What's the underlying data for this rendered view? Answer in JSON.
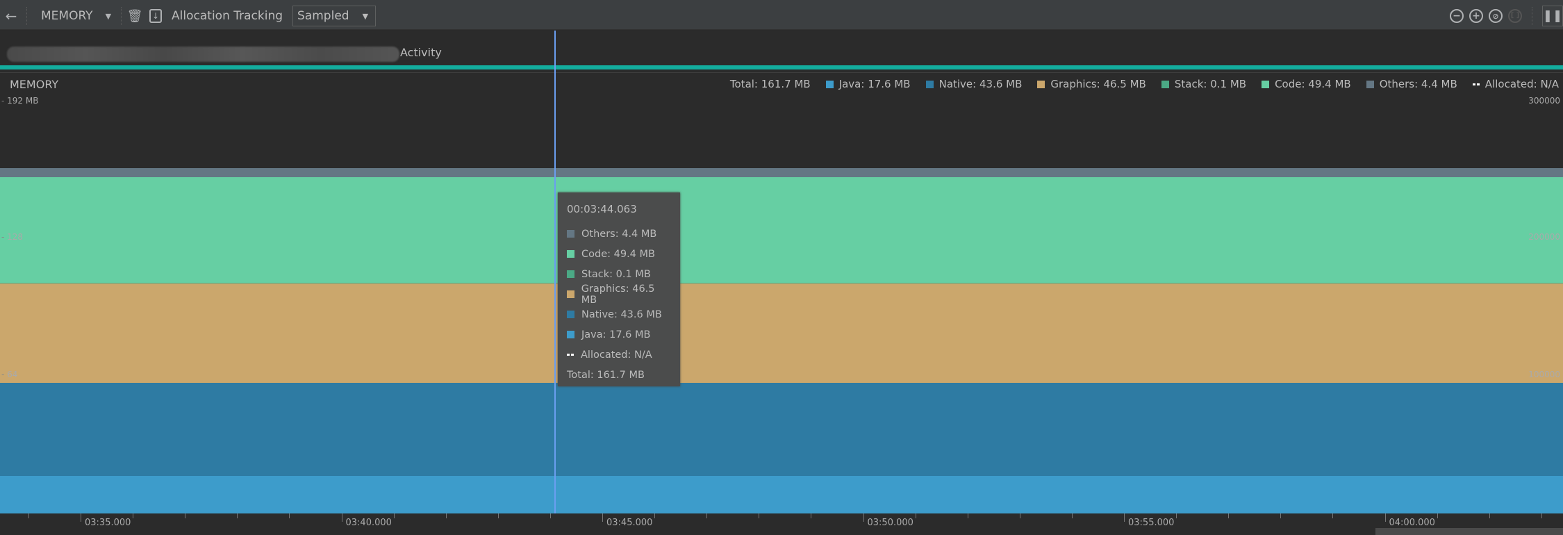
{
  "toolbar": {
    "back_icon": "arrow-left-icon",
    "profiler": "MEMORY",
    "allocation_label": "Allocation Tracking",
    "allocation_value": "Sampled"
  },
  "events": {
    "activity_label": "Activity"
  },
  "memory": {
    "title": "MEMORY",
    "legend": [
      {
        "label": "Total: 161.7 MB"
      },
      {
        "label": "Java: 17.6 MB",
        "color": "#3d9ccb"
      },
      {
        "label": "Native: 43.6 MB",
        "color": "#2e7ba3"
      },
      {
        "label": "Graphics: 46.5 MB",
        "color": "#cba76c"
      },
      {
        "label": "Stack: 0.1 MB",
        "color": "#4ba985"
      },
      {
        "label": "Code: 49.4 MB",
        "color": "#66cfa3"
      },
      {
        "label": "Others: 4.4 MB",
        "color": "#647784"
      },
      {
        "label": "Allocated: N/A",
        "dashed": true
      }
    ],
    "y_left_ticks": [
      "192 MB",
      "128",
      "64"
    ],
    "y_right_ticks": [
      "300000",
      "200000",
      "100000"
    ]
  },
  "tooltip": {
    "time": "00:03:44.063",
    "rows": [
      {
        "label": "Others: 4.4 MB",
        "color": "#647784"
      },
      {
        "label": "Code: 49.4 MB",
        "color": "#66cfa3"
      },
      {
        "label": "Stack: 0.1 MB",
        "color": "#4ba985"
      },
      {
        "label": "Graphics: 46.5 MB",
        "color": "#cba76c"
      },
      {
        "label": "Native: 43.6 MB",
        "color": "#2e7ba3"
      },
      {
        "label": "Java: 17.6 MB",
        "color": "#3d9ccb"
      },
      {
        "label": "Allocated: N/A",
        "dashed": true
      }
    ],
    "total": "Total: 161.7 MB"
  },
  "chart_data": {
    "type": "area",
    "stacked": true,
    "ylim": [
      0,
      192
    ],
    "series": [
      {
        "name": "Java",
        "value": 17.6,
        "color": "#3d9ccb"
      },
      {
        "name": "Native",
        "value": 43.6,
        "color": "#2e7ba3"
      },
      {
        "name": "Graphics",
        "value": 46.5,
        "color": "#cba76c"
      },
      {
        "name": "Stack",
        "value": 0.1,
        "color": "#4ba985"
      },
      {
        "name": "Code",
        "value": 49.4,
        "color": "#66cfa3"
      },
      {
        "name": "Others",
        "value": 4.4,
        "color": "#647784"
      }
    ],
    "x_ticks": [
      "03:35.000",
      "03:40.000",
      "03:45.000",
      "03:50.000",
      "03:55.000",
      "04:00.000"
    ]
  }
}
